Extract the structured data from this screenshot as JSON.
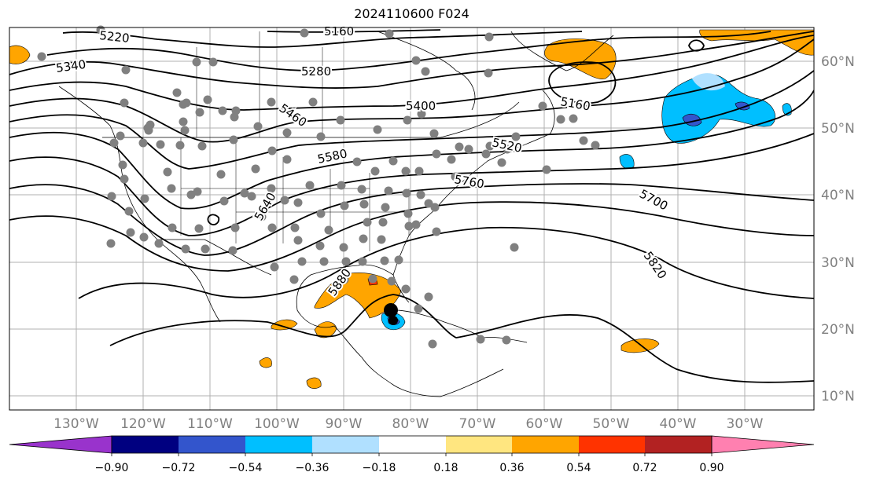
{
  "title": "2024110600 F024",
  "lon_labels": [
    "130°W",
    "120°W",
    "110°W",
    "100°W",
    "90°W",
    "80°W",
    "70°W",
    "60°W",
    "50°W",
    "40°W",
    "30°W"
  ],
  "lat_labels": [
    "60°N",
    "50°N",
    "40°N",
    "30°N",
    "20°N",
    "10°N"
  ],
  "contour_labels": [
    "5220",
    "5160",
    "5340",
    "5280",
    "5400",
    "5160",
    "5460",
    "5520",
    "5580",
    "5760",
    "5640",
    "5700",
    "5820",
    "5880"
  ],
  "colorbar": {
    "ticks": [
      "−0.90",
      "−0.72",
      "−0.54",
      "−0.36",
      "−0.18",
      "0.18",
      "0.36",
      "0.54",
      "0.72",
      "0.90"
    ],
    "colors": [
      "#9933cc",
      "#000080",
      "#3355cc",
      "#00bfff",
      "#b0e0ff",
      "#ffffff",
      "#ffe680",
      "#ffa500",
      "#ff3300",
      "#b22222",
      "#ff80b0"
    ]
  },
  "colors": {
    "contour": "#000000",
    "grid": "#b0b0b0",
    "station": "#808080",
    "axis_label": "#808080"
  }
}
